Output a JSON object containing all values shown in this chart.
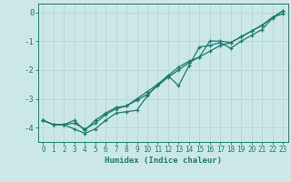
{
  "xlabel": "Humidex (Indice chaleur)",
  "ylabel": "",
  "background_color": "#cce8e6",
  "grid_color": "#b8d8d5",
  "line_color": "#1a7a6e",
  "marker_color": "#1a7a6e",
  "xlim": [
    -0.5,
    23.5
  ],
  "ylim": [
    -4.5,
    0.3
  ],
  "yticks": [
    0,
    -1,
    -2,
    -3,
    -4
  ],
  "xticks": [
    0,
    1,
    2,
    3,
    4,
    5,
    6,
    7,
    8,
    9,
    10,
    11,
    12,
    13,
    14,
    15,
    16,
    17,
    18,
    19,
    20,
    21,
    22,
    23
  ],
  "line1_x": [
    0,
    1,
    2,
    3,
    4,
    5,
    6,
    7,
    8,
    9,
    10,
    11,
    12,
    13,
    14,
    15,
    16,
    17,
    18,
    19,
    20,
    21,
    22,
    23
  ],
  "line1_y": [
    -3.75,
    -3.9,
    -3.9,
    -3.85,
    -4.05,
    -3.85,
    -3.55,
    -3.35,
    -3.25,
    -3.05,
    -2.85,
    -2.55,
    -2.25,
    -2.0,
    -1.75,
    -1.55,
    -1.35,
    -1.15,
    -1.05,
    -0.85,
    -0.65,
    -0.45,
    -0.18,
    -0.05
  ],
  "line2_x": [
    0,
    1,
    2,
    3,
    4,
    5,
    6,
    7,
    8,
    9,
    10,
    11,
    12,
    13,
    14,
    15,
    16,
    17,
    18,
    19,
    20,
    21,
    22,
    23
  ],
  "line2_y": [
    -3.75,
    -3.9,
    -3.9,
    -4.05,
    -4.2,
    -4.05,
    -3.75,
    -3.5,
    -3.45,
    -3.4,
    -2.9,
    -2.5,
    -2.2,
    -2.55,
    -1.85,
    -1.2,
    -1.15,
    -1.05,
    -1.25,
    -1.0,
    -0.8,
    -0.6,
    -0.2,
    0.05
  ],
  "line3_x": [
    0,
    1,
    2,
    3,
    4,
    5,
    6,
    7,
    8,
    9,
    10,
    11,
    12,
    13,
    14,
    15,
    16,
    17,
    18,
    19,
    20,
    21,
    22,
    23
  ],
  "line3_y": [
    -3.75,
    -3.9,
    -3.9,
    -3.75,
    -4.1,
    -3.75,
    -3.5,
    -3.3,
    -3.25,
    -3.0,
    -2.75,
    -2.5,
    -2.2,
    -1.9,
    -1.7,
    -1.55,
    -1.0,
    -1.0,
    -1.05,
    -0.85,
    -0.65,
    -0.45,
    -0.18,
    0.05
  ]
}
